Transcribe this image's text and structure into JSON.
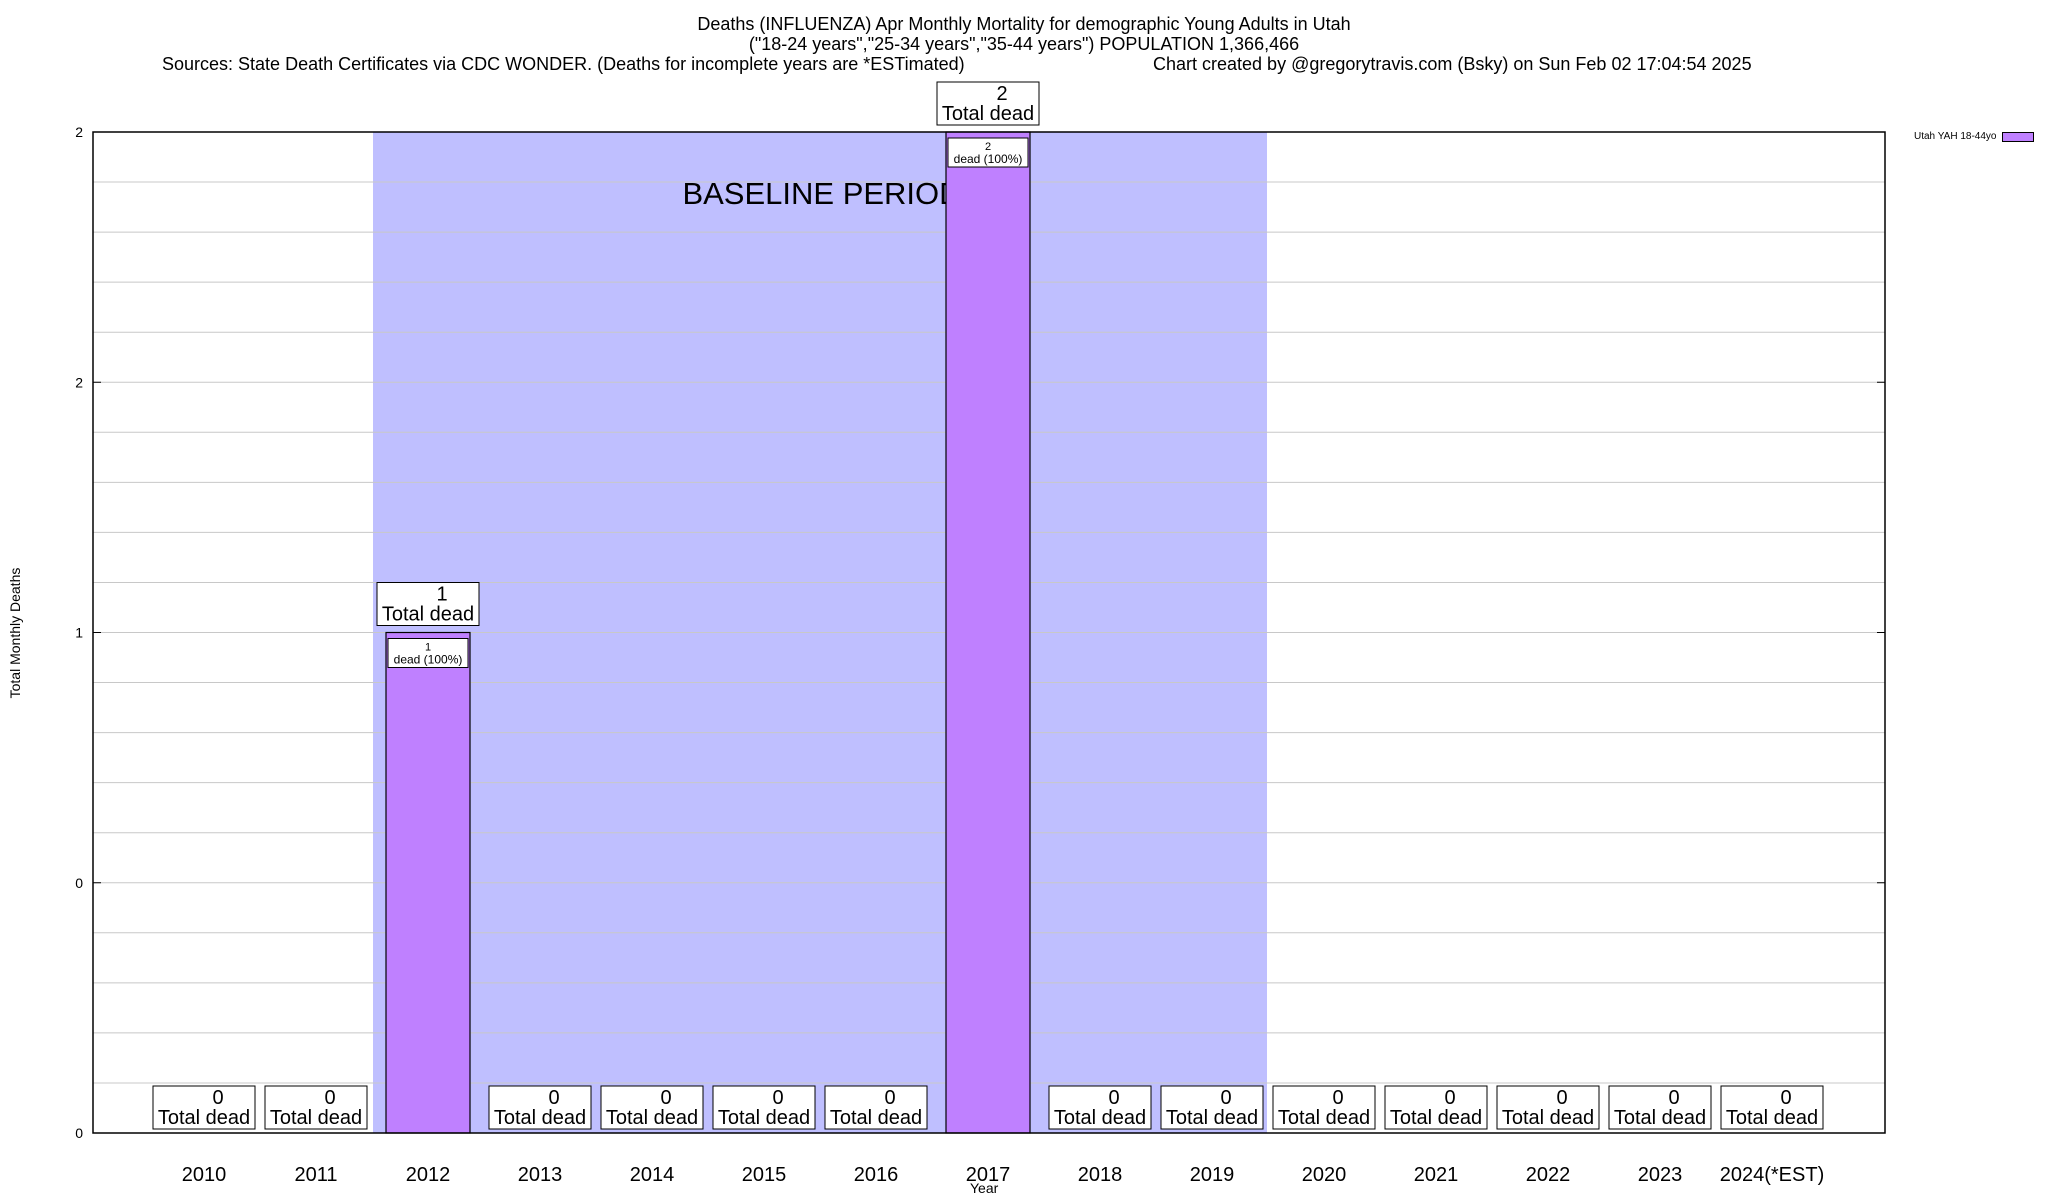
{
  "header": {
    "title_line1": "Deaths (INFLUENZA) Apr Monthly Mortality for demographic Young Adults in Utah",
    "title_line2": "(\"18-24 years\",\"25-34 years\",\"35-44 years\") POPULATION 1,366,466",
    "sources": "Sources: State Death Certificates via CDC WONDER. (Deaths for incomplete years are *ESTimated)",
    "credit": "Chart created by @gregorytravis.com (Bsky) on Sun Feb 02 17:04:54 2025"
  },
  "chart_data": {
    "type": "bar",
    "categories": [
      "2010",
      "2011",
      "2012",
      "2013",
      "2014",
      "2015",
      "2016",
      "2017",
      "2018",
      "2019",
      "2020",
      "2021",
      "2022",
      "2023",
      "2024(*EST)"
    ],
    "series": [
      {
        "name": "Utah YAH 18-44yo",
        "values": [
          0,
          0,
          1,
          0,
          0,
          0,
          0,
          2,
          0,
          0,
          0,
          0,
          0,
          0,
          0
        ],
        "color": "#bf80ff"
      }
    ],
    "total_label": "Total dead",
    "bar_label_suffix": "dead (100%)",
    "xlabel": "Year",
    "ylabel": "Total Monthly Deaths",
    "ylim": [
      0,
      2
    ],
    "y_tick_labels": [
      "0",
      "0",
      "1",
      "2",
      "2"
    ],
    "grid": true,
    "legend_position": "top-right",
    "baseline_period": {
      "label": "BASELINE PERIOD",
      "from": "2012",
      "to": "2019",
      "color": "#bfbfff"
    }
  }
}
